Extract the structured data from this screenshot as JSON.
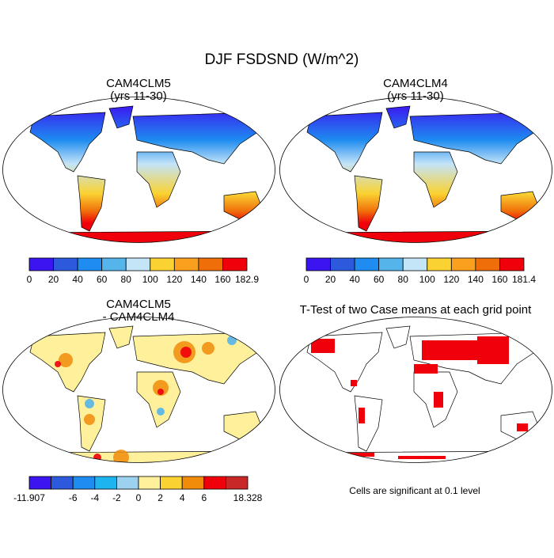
{
  "title": "DJF FSDSND (W/m^2)",
  "panels": [
    {
      "title": "CAM4CLM5",
      "subtitle": "(yrs 11-30)",
      "colorbar": {
        "colors": [
          "#3c14f0",
          "#2d5adc",
          "#1e8cf0",
          "#55b4ea",
          "#c4e4f8",
          "#fad232",
          "#faa01e",
          "#f06e0a",
          "#f0000a"
        ],
        "labels": [
          "0",
          "20",
          "40",
          "60",
          "80",
          "100",
          "120",
          "140",
          "160",
          "182.9"
        ]
      }
    },
    {
      "title": "CAM4CLM4",
      "subtitle": "(yrs 11-30)",
      "colorbar": {
        "colors": [
          "#3c14f0",
          "#2d5adc",
          "#1e8cf0",
          "#55b4ea",
          "#c4e4f8",
          "#fad232",
          "#faa01e",
          "#f06e0a",
          "#f0000a"
        ],
        "labels": [
          "0",
          "20",
          "40",
          "60",
          "80",
          "100",
          "120",
          "140",
          "160",
          "181.4"
        ]
      }
    },
    {
      "title": "CAM4CLM5",
      "subtitle": "- CAM4CLM4",
      "colorbar": {
        "colors": [
          "#3c14f0",
          "#2d5adc",
          "#1e8cf0",
          "#1eb4f0",
          "#9cd2f0",
          "#fff09c",
          "#fad232",
          "#f08c0a",
          "#f0000a",
          "#c82828"
        ],
        "labels": [
          "-11.907",
          null,
          "-6",
          "-4",
          "-2",
          "0",
          "2",
          "4",
          "6",
          null,
          "18.328"
        ]
      }
    },
    {
      "title": "T-Test of two Case means at each grid point",
      "note": "Cells are significant at 0.1 level"
    }
  ]
}
